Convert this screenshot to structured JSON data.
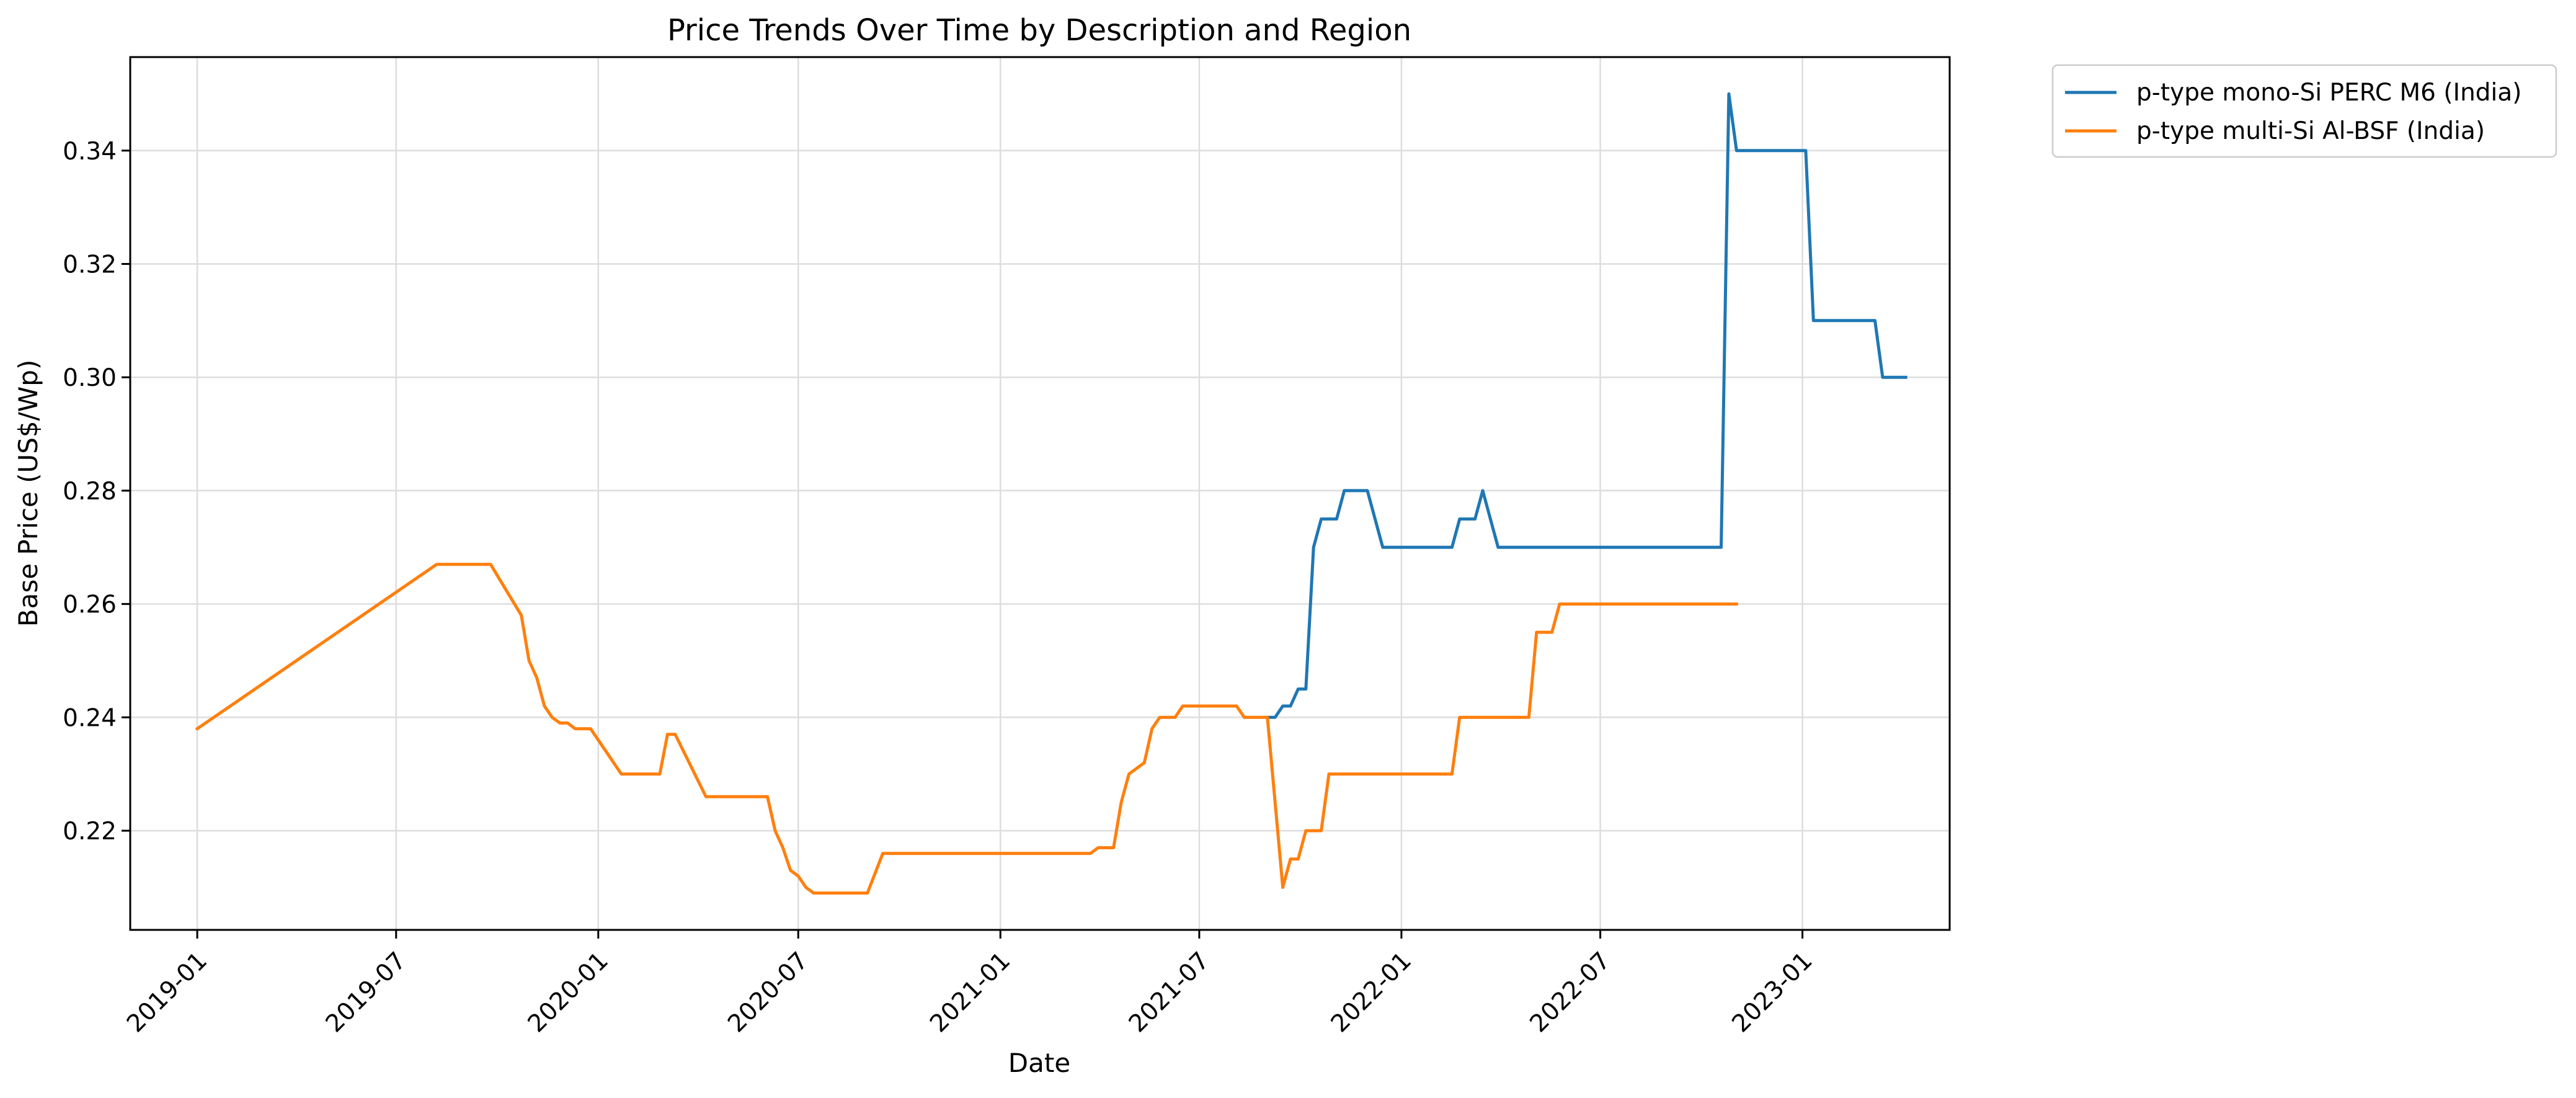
{
  "chart_data": {
    "type": "line",
    "title": "Price Trends Over Time by Description and Region",
    "xlabel": "Date",
    "ylabel": "Base Price (US$/Wp)",
    "x_type": "date",
    "xlim": [
      "2018-11-01",
      "2023-05-15"
    ],
    "ylim": [
      0.2025,
      0.3565
    ],
    "x_ticks": [
      "2019-01",
      "2019-07",
      "2020-01",
      "2020-07",
      "2021-01",
      "2021-07",
      "2022-01",
      "2022-07",
      "2023-01"
    ],
    "y_ticks": [
      0.22,
      0.24,
      0.26,
      0.28,
      0.3,
      0.32,
      0.34
    ],
    "y_tick_labels": [
      "0.22",
      "0.24",
      "0.26",
      "0.28",
      "0.30",
      "0.32",
      "0.34"
    ],
    "grid": true,
    "legend_position": "outside-top-right",
    "series": [
      {
        "name": "p-type mono-Si PERC M6 (India)",
        "color": "#1f77b4",
        "points": [
          [
            "2021-09-01",
            0.24
          ],
          [
            "2021-09-08",
            0.24
          ],
          [
            "2021-09-15",
            0.242
          ],
          [
            "2021-09-22",
            0.242
          ],
          [
            "2021-09-29",
            0.245
          ],
          [
            "2021-10-06",
            0.245
          ],
          [
            "2021-10-13",
            0.27
          ],
          [
            "2021-10-20",
            0.275
          ],
          [
            "2021-10-27",
            0.275
          ],
          [
            "2021-11-03",
            0.275
          ],
          [
            "2021-11-10",
            0.28
          ],
          [
            "2021-11-17",
            0.28
          ],
          [
            "2021-11-24",
            0.28
          ],
          [
            "2021-12-01",
            0.28
          ],
          [
            "2021-12-15",
            0.27
          ],
          [
            "2022-01-05",
            0.27
          ],
          [
            "2022-02-02",
            0.27
          ],
          [
            "2022-02-16",
            0.27
          ],
          [
            "2022-02-23",
            0.275
          ],
          [
            "2022-03-09",
            0.275
          ],
          [
            "2022-03-16",
            0.28
          ],
          [
            "2022-03-30",
            0.27
          ],
          [
            "2022-05-04",
            0.27
          ],
          [
            "2022-07-06",
            0.27
          ],
          [
            "2022-10-05",
            0.27
          ],
          [
            "2022-10-19",
            0.27
          ],
          [
            "2022-10-26",
            0.35
          ],
          [
            "2022-11-02",
            0.34
          ],
          [
            "2022-11-30",
            0.34
          ],
          [
            "2022-12-28",
            0.34
          ],
          [
            "2023-01-04",
            0.34
          ],
          [
            "2023-01-11",
            0.31
          ],
          [
            "2023-02-08",
            0.31
          ],
          [
            "2023-03-08",
            0.31
          ],
          [
            "2023-03-15",
            0.3
          ],
          [
            "2023-04-05",
            0.3
          ]
        ]
      },
      {
        "name": "p-type multi-Si Al-BSF (India)",
        "color": "#ff7f0e",
        "points": [
          [
            "2019-01-01",
            0.238
          ],
          [
            "2019-08-07",
            0.267
          ],
          [
            "2019-09-04",
            0.267
          ],
          [
            "2019-09-25",
            0.267
          ],
          [
            "2019-10-23",
            0.258
          ],
          [
            "2019-10-30",
            0.25
          ],
          [
            "2019-11-06",
            0.247
          ],
          [
            "2019-11-13",
            0.242
          ],
          [
            "2019-11-20",
            0.24
          ],
          [
            "2019-11-27",
            0.239
          ],
          [
            "2019-12-04",
            0.239
          ],
          [
            "2019-12-11",
            0.238
          ],
          [
            "2019-12-25",
            0.238
          ],
          [
            "2020-01-22",
            0.23
          ],
          [
            "2020-02-19",
            0.23
          ],
          [
            "2020-02-26",
            0.23
          ],
          [
            "2020-03-04",
            0.237
          ],
          [
            "2020-03-11",
            0.237
          ],
          [
            "2020-04-08",
            0.226
          ],
          [
            "2020-05-06",
            0.226
          ],
          [
            "2020-06-03",
            0.226
          ],
          [
            "2020-06-10",
            0.22
          ],
          [
            "2020-06-17",
            0.217
          ],
          [
            "2020-06-24",
            0.213
          ],
          [
            "2020-07-01",
            0.212
          ],
          [
            "2020-07-08",
            0.21
          ],
          [
            "2020-07-15",
            0.209
          ],
          [
            "2020-09-02",
            0.209
          ],
          [
            "2020-09-16",
            0.216
          ],
          [
            "2021-01-06",
            0.216
          ],
          [
            "2021-03-24",
            0.216
          ],
          [
            "2021-03-31",
            0.217
          ],
          [
            "2021-04-14",
            0.217
          ],
          [
            "2021-04-21",
            0.225
          ],
          [
            "2021-04-28",
            0.23
          ],
          [
            "2021-05-12",
            0.232
          ],
          [
            "2021-05-19",
            0.238
          ],
          [
            "2021-05-26",
            0.24
          ],
          [
            "2021-06-09",
            0.24
          ],
          [
            "2021-06-16",
            0.242
          ],
          [
            "2021-07-07",
            0.242
          ],
          [
            "2021-08-04",
            0.242
          ],
          [
            "2021-08-11",
            0.24
          ],
          [
            "2021-08-25",
            0.24
          ],
          [
            "2021-09-01",
            0.24
          ],
          [
            "2021-09-15",
            0.21
          ],
          [
            "2021-09-22",
            0.215
          ],
          [
            "2021-09-29",
            0.215
          ],
          [
            "2021-10-06",
            0.22
          ],
          [
            "2021-10-20",
            0.22
          ],
          [
            "2021-10-27",
            0.23
          ],
          [
            "2021-11-10",
            0.23
          ],
          [
            "2022-01-05",
            0.23
          ],
          [
            "2022-02-16",
            0.23
          ],
          [
            "2022-02-23",
            0.24
          ],
          [
            "2022-03-30",
            0.24
          ],
          [
            "2022-04-27",
            0.24
          ],
          [
            "2022-05-04",
            0.255
          ],
          [
            "2022-05-18",
            0.255
          ],
          [
            "2022-05-25",
            0.26
          ],
          [
            "2022-07-06",
            0.26
          ],
          [
            "2022-10-05",
            0.26
          ],
          [
            "2022-11-02",
            0.26
          ]
        ]
      }
    ]
  }
}
